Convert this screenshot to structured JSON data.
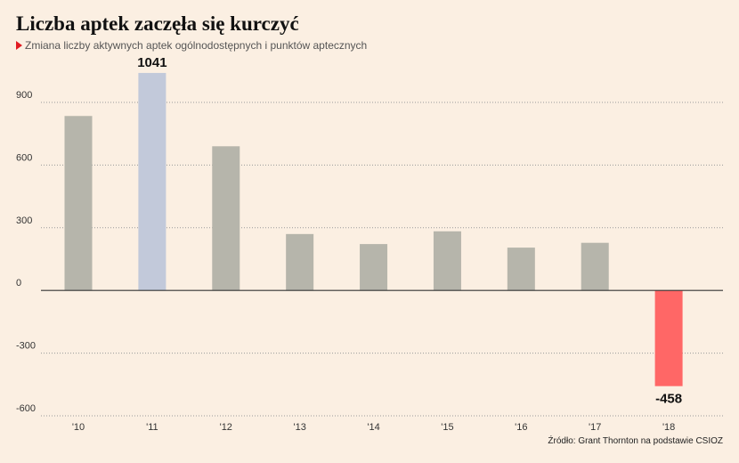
{
  "title": "Liczba aptek zaczęła się kurczyć",
  "subtitle": "Zmiana liczby aktywnych aptek ogólnodostępnych i punktów aptecznych",
  "source": "Źródło: Grant Thornton na podstawie CSIOZ",
  "colors": {
    "background": "#fbefe2",
    "bar_default": "#b6b5ab",
    "bar_highlight_max": "#c2c9da",
    "bar_negative": "#ff6766",
    "grid": "#999999",
    "zero_line": "#333333",
    "marker": "#e11b22"
  },
  "chart_data": {
    "type": "bar",
    "title": "Liczba aptek zaczęła się kurczyć",
    "subtitle": "Zmiana liczby aktywnych aptek ogólnodostępnych i punktów aptecznych",
    "categories": [
      "'10",
      "'11",
      "'12",
      "'13",
      "'14",
      "'15",
      "'16",
      "'17",
      "'18"
    ],
    "values": [
      835,
      1041,
      690,
      270,
      222,
      283,
      205,
      228,
      -458
    ],
    "data_labels": [
      {
        "category": "'11",
        "label": "1041"
      },
      {
        "category": "'18",
        "label": "-458"
      }
    ],
    "yticks": [
      -600,
      -300,
      0,
      300,
      600,
      900
    ],
    "ylim": [
      -600,
      1041
    ],
    "grid": true,
    "legend": "none"
  }
}
